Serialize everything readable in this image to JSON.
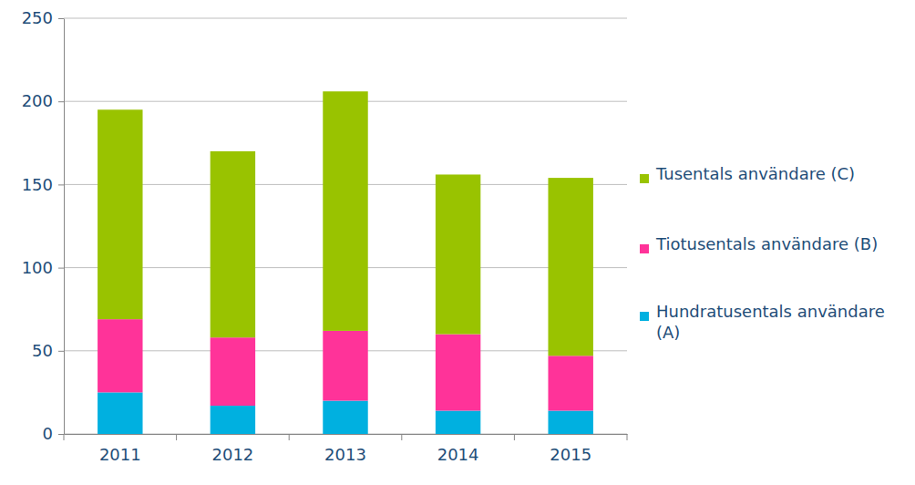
{
  "chart_data": {
    "type": "bar",
    "stacked": true,
    "grid": true,
    "legend": "right",
    "categories": [
      "2011",
      "2012",
      "2013",
      "2014",
      "2015"
    ],
    "ylim": [
      0,
      250
    ],
    "yticks": [
      0,
      50,
      100,
      150,
      200,
      250
    ],
    "series": [
      {
        "name": "Hundratusentals användare (A)",
        "color": "#00b0e0",
        "values": [
          25,
          17,
          20,
          14,
          14
        ]
      },
      {
        "name": "Tiotusentals användare (B)",
        "color": "#ff3399",
        "values": [
          44,
          41,
          42,
          46,
          33
        ]
      },
      {
        "name": "Tusentals användare (C)",
        "color": "#99c300",
        "values": [
          126,
          112,
          144,
          96,
          107
        ]
      }
    ]
  }
}
